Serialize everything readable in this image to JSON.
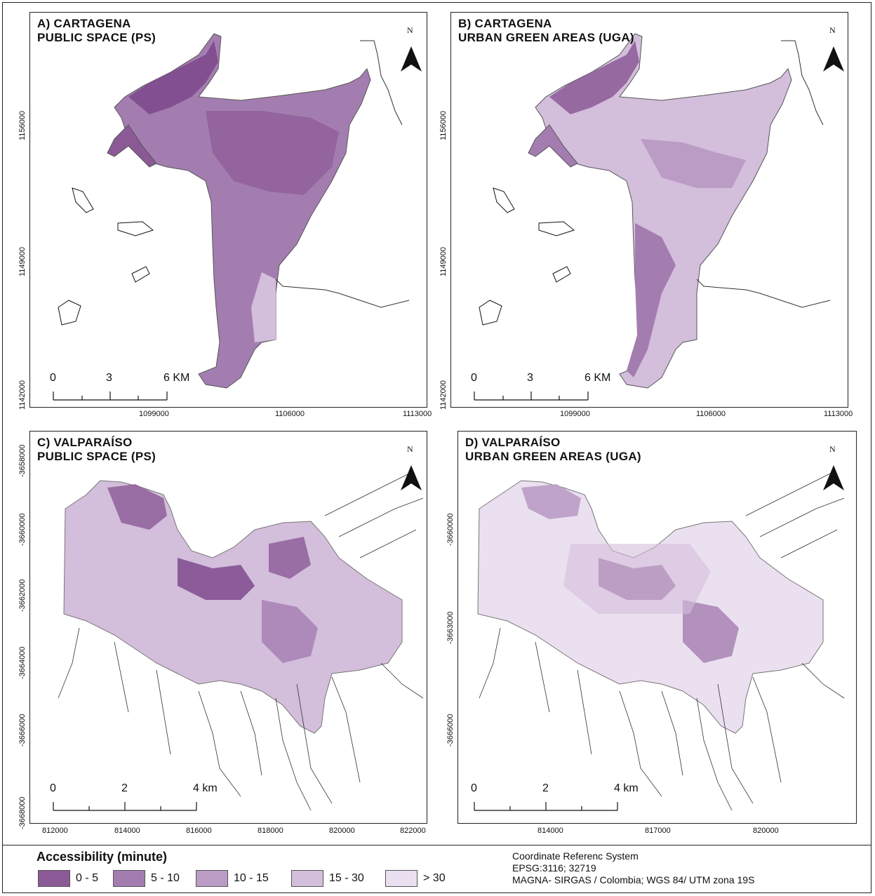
{
  "panels": [
    {
      "title1": "A) CARTAGENA",
      "title2": "PUBLIC SPACE (PS)",
      "y_ticks": [
        "1156000",
        "1149000",
        "1142000"
      ],
      "x_ticks": [
        "1099000",
        "1106000",
        "1113000"
      ],
      "scale": [
        "0",
        "3",
        "6 KM"
      ],
      "north": "N"
    },
    {
      "title1": "B) CARTAGENA",
      "title2": "URBAN GREEN AREAS (UGA)",
      "y_ticks": [
        "1156000",
        "1149000",
        "1142000"
      ],
      "x_ticks": [
        "1099000",
        "1106000",
        "1113000"
      ],
      "scale": [
        "0",
        "3",
        "6 KM"
      ],
      "north": "N"
    },
    {
      "title1": "C) VALPARAÍSO",
      "title2": "PUBLIC SPACE (PS)",
      "y_ticks": [
        "-3658000",
        "-3660000",
        "-3662000",
        "-3664000",
        "-3666000",
        "-3668000"
      ],
      "x_ticks": [
        "812000",
        "814000",
        "816000",
        "818000",
        "820000",
        "822000"
      ],
      "scale": [
        "0",
        "2",
        "4 km"
      ],
      "north": "N"
    },
    {
      "title1": "D) VALPARAÍSO",
      "title2": "URBAN GREEN AREAS (UGA)",
      "y_ticks": [
        "-3660000",
        "-3663000",
        "-3666000"
      ],
      "x_ticks": [
        "814000",
        "817000",
        "820000"
      ],
      "scale": [
        "0",
        "2",
        "4 km"
      ],
      "north": "N"
    }
  ],
  "legend": {
    "title": "Accessibility (minute)",
    "items": [
      {
        "label": "0 - 5",
        "color": "#8b5a96"
      },
      {
        "label": "5 - 10",
        "color": "#a47db0"
      },
      {
        "label": "10 - 15",
        "color": "#bb9cc5"
      },
      {
        "label": "15 - 30",
        "color": "#d3bedb"
      },
      {
        "label": "> 30",
        "color": "#ebe0f0"
      }
    ]
  },
  "crs": {
    "line1": "Coordinate Referenc System",
    "line2": "EPSG:3116; 32719",
    "line3": "MAGNA- SIRGAS / Colombia; WGS 84/ UTM zona 19S"
  }
}
